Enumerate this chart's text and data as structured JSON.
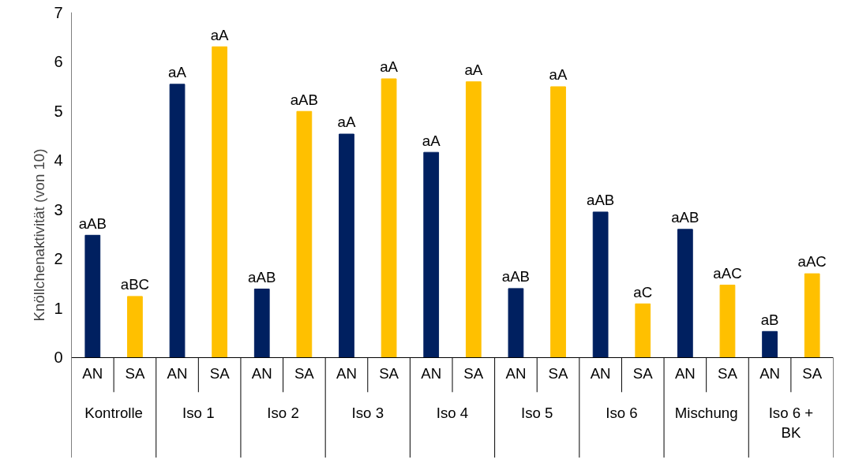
{
  "chart_data": {
    "type": "bar",
    "ylabel": "Knöllchenaktivität (von 10)",
    "categories": [
      "Kontrolle",
      "Iso 1",
      "Iso 2",
      "Iso 3",
      "Iso 4",
      "Iso 5",
      "Iso 6",
      "Mischung",
      "Iso 6 +\nBK"
    ],
    "series": [
      {
        "name": "AN",
        "color": "#002060",
        "values": [
          2.48,
          5.54,
          1.39,
          4.53,
          4.16,
          1.4,
          2.95,
          2.6,
          0.53
        ],
        "value_labels": [
          "aAB",
          "aA",
          "aAB",
          "aA",
          "aA",
          "aAB",
          "aAB",
          "aAB",
          "aB"
        ]
      },
      {
        "name": "SA",
        "color": "#ffc000",
        "values": [
          1.24,
          6.3,
          4.99,
          5.65,
          5.59,
          5.49,
          1.09,
          1.47,
          1.7
        ],
        "value_labels": [
          "aBC",
          "aA",
          "aAB",
          "aA",
          "aA",
          "aA",
          "aC",
          "aAC",
          "aAC"
        ]
      }
    ],
    "ylim": [
      0,
      7
    ],
    "yticks": [
      0,
      1,
      2,
      3,
      4,
      5,
      6,
      7
    ],
    "grid": false
  }
}
